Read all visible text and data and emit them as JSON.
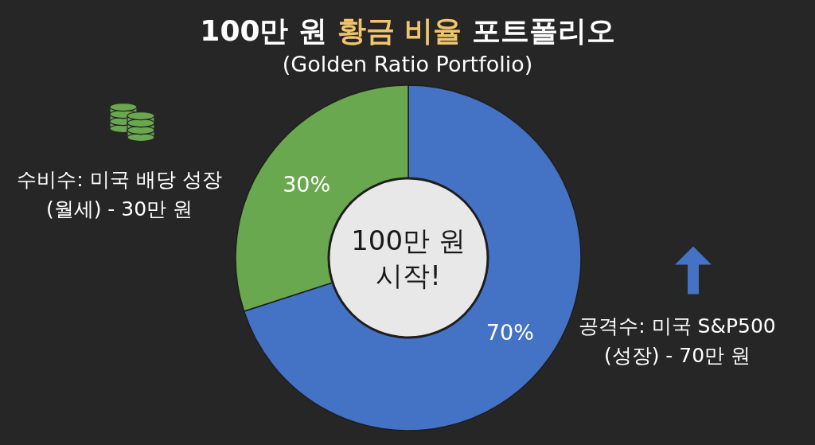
{
  "chart_data": {
    "type": "donut",
    "title": "100만 원 황금 비율 포트폴리오",
    "subtitle": "(Golden Ratio Portfolio)",
    "categories": [
      "공격수: 미국 S&P500\n(성장) - 70만 원",
      "수비수: 미국 배당 성장\n(월세) - 30만 원"
    ],
    "values": [
      70,
      30
    ],
    "colors": [
      "#4472c4",
      "#6aa84f"
    ],
    "value_labels": [
      "70%",
      "30%"
    ],
    "annotations": [
      "100만 원\n시작!"
    ]
  }
}
